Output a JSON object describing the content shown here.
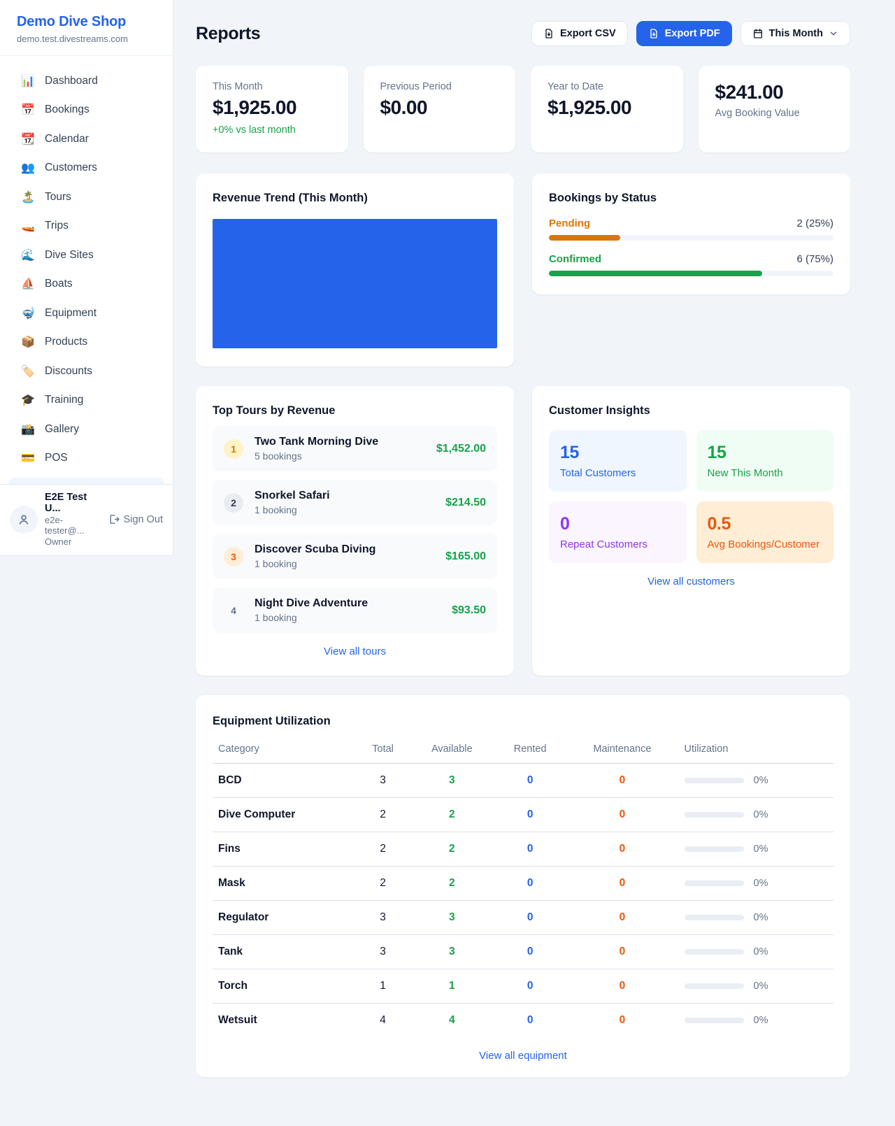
{
  "colors": {
    "accent": "#2563eb",
    "green": "#16a34a",
    "orange": "#ea580c",
    "amber": "#d97706",
    "purple": "#9333ea"
  },
  "sidebar": {
    "brand": {
      "name": "Demo Dive Shop",
      "domain": "demo.test.divestreams.com"
    },
    "nav": [
      {
        "icon": "📊",
        "label": "Dashboard"
      },
      {
        "icon": "📅",
        "label": "Bookings"
      },
      {
        "icon": "📆",
        "label": "Calendar"
      },
      {
        "icon": "👥",
        "label": "Customers"
      },
      {
        "icon": "🏝️",
        "label": "Tours"
      },
      {
        "icon": "🚤",
        "label": "Trips"
      },
      {
        "icon": "🌊",
        "label": "Dive Sites"
      },
      {
        "icon": "⛵",
        "label": "Boats"
      },
      {
        "icon": "🤿",
        "label": "Equipment"
      },
      {
        "icon": "📦",
        "label": "Products"
      },
      {
        "icon": "🏷️",
        "label": "Discounts"
      },
      {
        "icon": "🎓",
        "label": "Training"
      },
      {
        "icon": "📸",
        "label": "Gallery"
      },
      {
        "icon": "💳",
        "label": "POS"
      }
    ],
    "user": {
      "name": "E2E Test U...",
      "email": "e2e-tester@...",
      "role": "Owner",
      "sign_out": "Sign Out"
    }
  },
  "header": {
    "title": "Reports",
    "export_csv": "Export CSV",
    "export_pdf": "Export PDF",
    "period": "This Month"
  },
  "stats": [
    {
      "label": "This Month",
      "value": "$1,925.00",
      "delta": "+0% vs last month"
    },
    {
      "label": "Previous Period",
      "value": "$0.00"
    },
    {
      "label": "Year to Date",
      "value": "$1,925.00"
    },
    {
      "label": "Avg Booking Value",
      "value": "$241.00"
    }
  ],
  "revenue_trend": {
    "title": "Revenue Trend (This Month)",
    "chart_color": "#2563eb"
  },
  "bookings_by_status": {
    "title": "Bookings by Status",
    "items": [
      {
        "label": "Pending",
        "count": "2 (25%)",
        "pct": 25,
        "color": "#d97706"
      },
      {
        "label": "Confirmed",
        "count": "6 (75%)",
        "pct": 75,
        "color": "#16a34a"
      }
    ]
  },
  "top_tours": {
    "title": "Top Tours by Revenue",
    "items": [
      {
        "rank": "1",
        "name": "Two Tank Morning Dive",
        "bookings": "5 bookings",
        "amount": "$1,452.00"
      },
      {
        "rank": "2",
        "name": "Snorkel Safari",
        "bookings": "1 booking",
        "amount": "$214.50"
      },
      {
        "rank": "3",
        "name": "Discover Scuba Diving",
        "bookings": "1 booking",
        "amount": "$165.00"
      },
      {
        "rank": "4",
        "name": "Night Dive Adventure",
        "bookings": "1 booking",
        "amount": "$93.50"
      }
    ],
    "view_all": "View all tours"
  },
  "customer_insights": {
    "title": "Customer Insights",
    "tiles": [
      {
        "value": "15",
        "label": "Total Customers",
        "color": "#2563eb",
        "bg": "#eff6ff"
      },
      {
        "value": "15",
        "label": "New This Month",
        "color": "#16a34a",
        "bg": "#f0fdf4"
      },
      {
        "value": "0",
        "label": "Repeat Customers",
        "color": "#9333ea",
        "bg": "#faf5ff"
      },
      {
        "value": "0.5",
        "label": "Avg Bookings/Customer",
        "color": "#ea580c",
        "bg": "#ffedd5"
      }
    ],
    "view_all": "View all customers"
  },
  "equipment": {
    "title": "Equipment Utilization",
    "columns": [
      "Category",
      "Total",
      "Available",
      "Rented",
      "Maintenance",
      "Utilization"
    ],
    "rows": [
      {
        "category": "BCD",
        "total": "3",
        "available": "3",
        "rented": "0",
        "maintenance": "0",
        "utilization_pct": 0,
        "utilization_label": "0%"
      },
      {
        "category": "Dive Computer",
        "total": "2",
        "available": "2",
        "rented": "0",
        "maintenance": "0",
        "utilization_pct": 0,
        "utilization_label": "0%"
      },
      {
        "category": "Fins",
        "total": "2",
        "available": "2",
        "rented": "0",
        "maintenance": "0",
        "utilization_pct": 0,
        "utilization_label": "0%"
      },
      {
        "category": "Mask",
        "total": "2",
        "available": "2",
        "rented": "0",
        "maintenance": "0",
        "utilization_pct": 0,
        "utilization_label": "0%"
      },
      {
        "category": "Regulator",
        "total": "3",
        "available": "3",
        "rented": "0",
        "maintenance": "0",
        "utilization_pct": 0,
        "utilization_label": "0%"
      },
      {
        "category": "Tank",
        "total": "3",
        "available": "3",
        "rented": "0",
        "maintenance": "0",
        "utilization_pct": 0,
        "utilization_label": "0%"
      },
      {
        "category": "Torch",
        "total": "1",
        "available": "1",
        "rented": "0",
        "maintenance": "0",
        "utilization_pct": 0,
        "utilization_label": "0%"
      },
      {
        "category": "Wetsuit",
        "total": "4",
        "available": "4",
        "rented": "0",
        "maintenance": "0",
        "utilization_pct": 0,
        "utilization_label": "0%"
      }
    ],
    "view_all": "View all equipment"
  }
}
